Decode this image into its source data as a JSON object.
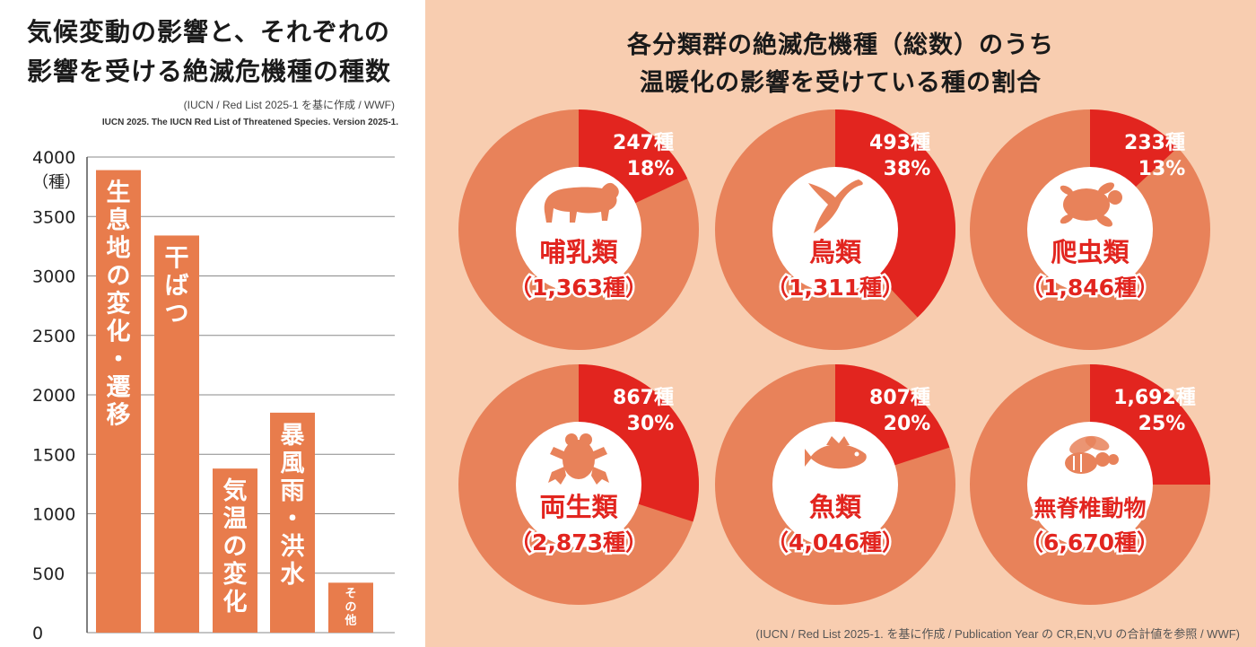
{
  "left": {
    "title_line1": "気候変動の影響と、それぞれの",
    "title_line2": "影響を受ける絶滅危機種の種数",
    "source_note": "(IUCN / Red List 2025-1 を基に作成 / WWF)",
    "citation": "IUCN 2025. The IUCN Red List of Threatened Species. Version 2025-1."
  },
  "right": {
    "title_line1": "各分類群の絶滅危機種（総数）のうち",
    "title_line2": "温暖化の影響を受けている種の割合",
    "source_note": "(IUCN / Red List 2025-1. を基に作成 / Publication Year の CR,EN,VU の合計値を参照 / WWF)"
  },
  "colors": {
    "bar": "#e87c4c",
    "pie_base": "#e8825a",
    "pie_highlight": "#e2251f",
    "center_circle": "#ffffff",
    "label_red": "#e2251f",
    "label_white": "#ffffff",
    "right_background": "#f8cdb0"
  },
  "chart_data": [
    {
      "type": "bar",
      "ylabel": "（種）",
      "ylim": [
        0,
        4000
      ],
      "ytick_step": 500,
      "grid": true,
      "categories": [
        "生息地の変化・遷移",
        "干ばつ",
        "気温の変化",
        "暴風雨・洪水",
        "その他"
      ],
      "values": [
        3890,
        3340,
        1380,
        1850,
        420
      ]
    },
    {
      "type": "pie",
      "total_label": "哺乳類",
      "total": "（1,363種）",
      "value_label": "247種",
      "percent_label": "18%",
      "percent": 18,
      "icon": "bear-icon"
    },
    {
      "type": "pie",
      "total_label": "鳥類",
      "total": "（1,311種）",
      "value_label": "493種",
      "percent_label": "38%",
      "percent": 38,
      "icon": "bird-icon"
    },
    {
      "type": "pie",
      "total_label": "爬虫類",
      "total": "（1,846種）",
      "value_label": "233種",
      "percent_label": "13%",
      "percent": 13,
      "icon": "turtle-icon"
    },
    {
      "type": "pie",
      "total_label": "両生類",
      "total": "（2,873種）",
      "value_label": "867種",
      "percent_label": "30%",
      "percent": 30,
      "icon": "frog-icon"
    },
    {
      "type": "pie",
      "total_label": "魚類",
      "total": "（4,046種）",
      "value_label": "807種",
      "percent_label": "20%",
      "percent": 20,
      "icon": "fish-icon"
    },
    {
      "type": "pie",
      "total_label": "無脊椎動物",
      "total": "（6,670種）",
      "value_label": "1,692種",
      "percent_label": "25%",
      "percent": 25,
      "icon": "bee-icon"
    }
  ]
}
